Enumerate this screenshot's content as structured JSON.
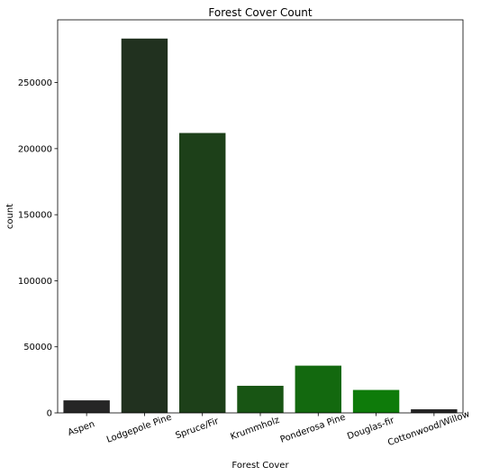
{
  "chart_data": {
    "type": "bar",
    "title": "Forest Cover Count",
    "xlabel": "Forest Cover",
    "ylabel": "count",
    "categories": [
      "Aspen",
      "Lodgepole Pine",
      "Spruce/Fir",
      "Krummholz",
      "Ponderosa Pine",
      "Douglas-fir",
      "Cottonwood/Willow"
    ],
    "values": [
      9493,
      283301,
      211840,
      20510,
      35754,
      17367,
      2747
    ],
    "colors": [
      "#262626",
      "#21311f",
      "#1d4019",
      "#185514",
      "#13690f",
      "#0e7b0a",
      "#262626"
    ],
    "ylim": [
      0,
      297480
    ],
    "yticks": [
      0,
      50000,
      100000,
      150000,
      200000,
      250000
    ],
    "grid": false,
    "legend": "none"
  }
}
